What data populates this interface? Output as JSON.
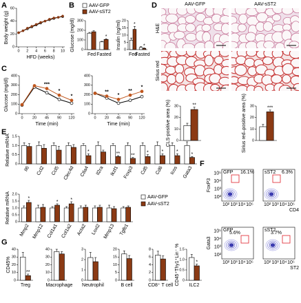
{
  "chart_data": [
    {
      "panel": "A",
      "type": "line",
      "ylabel": "Body weight (g)",
      "xlabel": "HFD (weeks)",
      "x": [
        0,
        1,
        2,
        3,
        4,
        5,
        6,
        7,
        8,
        9,
        10
      ],
      "xlim": [
        0,
        10
      ],
      "xticks": [
        0,
        2,
        4,
        6,
        8,
        10
      ],
      "ylim": [
        0,
        60
      ],
      "yticks": [
        0,
        20,
        40,
        60
      ],
      "series": [
        {
          "color": "#000000",
          "fill": "#ffffff",
          "values": [
            22,
            25,
            28,
            31,
            34,
            37,
            40,
            42,
            44,
            46,
            47
          ]
        },
        {
          "color": "#8b3a14",
          "fill": "#8b3a14",
          "values": [
            22,
            25,
            29,
            32,
            35,
            38,
            40,
            43,
            45,
            46,
            48
          ]
        }
      ]
    },
    {
      "panel": "B",
      "type": "bar",
      "ylabel": "Glucose (mg/dl)",
      "categories": [
        "Fed",
        "Fasted"
      ],
      "ylim": [
        0,
        300
      ],
      "yticks": [
        0,
        100,
        200,
        300
      ],
      "legend": "top",
      "series": [
        {
          "name": "AAV-GFP",
          "color": "#ffffff",
          "values": [
            170,
            80
          ],
          "errors": [
            8,
            6
          ]
        },
        {
          "name": "AAV-sST2",
          "color": "#8b3a14",
          "values": [
            185,
            105
          ],
          "errors": [
            10,
            8
          ]
        }
      ],
      "annotations": [
        {
          "category": "Fasted",
          "text": "*"
        }
      ]
    },
    {
      "type": "bar",
      "ylabel": "Insulin (ng/ml)",
      "categories": [
        "Fed",
        "Fasted"
      ],
      "ylim": [
        0,
        20
      ],
      "yticks": [
        0,
        5,
        10,
        15,
        20
      ],
      "series": [
        {
          "color": "#ffffff",
          "values": [
            6.5,
            1.5
          ],
          "errors": [
            1.5,
            0.5
          ]
        },
        {
          "color": "#8b3a14",
          "values": [
            14,
            0.8
          ],
          "errors": [
            2,
            0.3
          ]
        }
      ],
      "annotations": [
        {
          "category": "Fed",
          "text": "*"
        },
        {
          "category": "Fasted",
          "text": "*"
        }
      ]
    },
    {
      "panel": "C",
      "type": "line",
      "ylabel": "Glucose (mg/dl)",
      "xlabel": "Time (min)",
      "categories": [
        "0",
        "20",
        "45",
        "90",
        "120"
      ],
      "ylim": [
        0,
        400
      ],
      "yticks": [
        0,
        100,
        200,
        300,
        400
      ],
      "series": [
        {
          "color": "#000000",
          "fill": "#ffffff",
          "values": [
            90,
            280,
            220,
            150,
            110
          ]
        },
        {
          "color": "#c0571e",
          "fill": "#c0571e",
          "values": [
            95,
            295,
            265,
            195,
            140
          ]
        }
      ],
      "annotations": [
        {
          "category": "45",
          "text": "***"
        },
        {
          "category": "90",
          "text": "*"
        },
        {
          "category": "120",
          "text": "*"
        }
      ]
    },
    {
      "type": "line",
      "xlabel": "Time (min)",
      "categories": [
        "0",
        "20",
        "45",
        "90",
        "120"
      ],
      "ylim": [
        0,
        400
      ],
      "yticks": [
        0,
        100,
        200,
        300,
        400
      ],
      "series": [
        {
          "color": "#000000",
          "fill": "#ffffff",
          "values": [
            215,
            165,
            110,
            140,
            180
          ]
        },
        {
          "color": "#c0571e",
          "fill": "#c0571e",
          "values": [
            215,
            185,
            150,
            195,
            235
          ]
        }
      ],
      "annotations": [
        {
          "category": "20",
          "text": "**"
        },
        {
          "category": "45",
          "text": "*"
        },
        {
          "category": "90",
          "text": "**"
        },
        {
          "category": "120",
          "text": "*"
        }
      ]
    },
    {
      "type": "bar",
      "ylabel": "CLS-positive area (%)",
      "ylim": [
        0,
        30
      ],
      "yticks": [
        0,
        10,
        20,
        30
      ],
      "series": [
        {
          "color": "#ffffff",
          "values": [
            13
          ],
          "errors": [
            2
          ]
        },
        {
          "color": "#8b3a14",
          "values": [
            27
          ],
          "errors": [
            2
          ]
        }
      ],
      "annotations": [
        {
          "text": "**"
        }
      ]
    },
    {
      "type": "bar",
      "ylabel": "Sirius red–positive area (%)",
      "ylim": [
        0,
        30
      ],
      "yticks": [
        0,
        10,
        20,
        30
      ],
      "series": [
        {
          "color": "#ffffff",
          "values": [
            12
          ],
          "errors": [
            2
          ]
        },
        {
          "color": "#8b3a14",
          "values": [
            25
          ],
          "errors": [
            1.5
          ]
        }
      ],
      "annotations": [
        {
          "text": "***"
        }
      ]
    },
    {
      "panel": "E",
      "type": "bar",
      "ylabel": "Relative mRNA",
      "categories": [
        "Il6",
        "Ccl2",
        "Ccl5",
        "Clec4d",
        "Ctla4",
        "Il2ra",
        "Ikzf1",
        "Foxp3",
        "Cd5",
        "Cd6",
        "Icos",
        "Gata3"
      ],
      "ylim": [
        0,
        1.5
      ],
      "yticks": [
        0,
        0.5,
        {
          "value": 1,
          "label": "1.0"
        },
        1.5
      ],
      "series": [
        {
          "color": "#ffffff",
          "values": [
            1,
            1,
            1,
            1,
            1,
            1,
            1,
            1,
            1,
            1,
            1,
            1
          ],
          "errors": [
            0.15,
            0.2,
            0.15,
            0.15,
            0.1,
            0.2,
            0.1,
            0.15,
            0.15,
            0.2,
            0.15,
            0.2
          ]
        },
        {
          "color": "#8b3a14",
          "values": [
            0.95,
            0.85,
            0.75,
            0.9,
            0.45,
            0.65,
            0.4,
            0.3,
            0.4,
            0.45,
            0.45,
            0.35
          ],
          "errors": [
            0.15,
            0.2,
            0.2,
            0.15,
            0.1,
            0.1,
            0.05,
            0.05,
            0.1,
            0.1,
            0.1,
            0.05
          ]
        }
      ],
      "annotations": [
        {
          "category": "Ctla4",
          "text": "*"
        },
        {
          "category": "Ikzf1",
          "text": "**"
        },
        {
          "category": "Foxp3",
          "text": "**"
        },
        {
          "category": "Cd5",
          "text": "*"
        },
        {
          "category": "Cd6",
          "text": "*"
        },
        {
          "category": "Icos",
          "text": "*"
        },
        {
          "category": "Gata3",
          "text": "*"
        }
      ]
    },
    {
      "type": "bar",
      "ylabel": "Relative mRNA",
      "categories": [
        "Mmp2",
        "Mmp12",
        "Col1a1",
        "Col1a2",
        "Acta2",
        "Loxl2",
        "Mmp13",
        "Tgfb1"
      ],
      "ylim": [
        0,
        2
      ],
      "yticks": [
        0,
        0.5,
        {
          "value": 1,
          "label": "1.0"
        },
        1.5,
        {
          "value": 2,
          "label": "2.0"
        }
      ],
      "legend": "right",
      "series": [
        {
          "name": "AAV-GFP",
          "color": "#ffffff",
          "values": [
            1,
            1,
            1,
            1,
            1,
            1,
            1,
            1
          ],
          "errors": [
            0.15,
            0.2,
            0.1,
            0.1,
            0.15,
            0.15,
            0.2,
            0.1
          ]
        },
        {
          "name": "AAV-sST2",
          "color": "#8b3a14",
          "values": [
            1.4,
            1.05,
            1.2,
            1.3,
            1.05,
            1.05,
            0.95,
            1.05
          ],
          "errors": [
            0.15,
            0.2,
            0.1,
            0.15,
            0.15,
            0.15,
            0.15,
            0.1
          ]
        }
      ],
      "annotations": [
        {
          "category": "Mmp2",
          "text": "*"
        },
        {
          "category": "Col1a1",
          "text": "*"
        },
        {
          "category": "Col1a2",
          "text": "*"
        }
      ]
    },
    {
      "panel": "G",
      "type": "bar",
      "ylabel": "CD45%",
      "categories": [
        "Treg"
      ],
      "ylim": [
        0,
        40
      ],
      "yticks": [
        0,
        10,
        20,
        30,
        40
      ],
      "series": [
        {
          "color": "#ffffff",
          "values": [
            30
          ],
          "errors": [
            6
          ]
        },
        {
          "color": "#8b3a14",
          "values": [
            6
          ],
          "errors": [
            2
          ]
        }
      ],
      "annotations": [
        {
          "category": "Treg",
          "text": "**"
        }
      ]
    },
    {
      "type": "bar",
      "categories": [
        "Macrophage"
      ],
      "ylim": [
        0,
        40
      ],
      "yticks": [
        0,
        10,
        20,
        30,
        40
      ],
      "series": [
        {
          "color": "#ffffff",
          "values": [
            37
          ],
          "errors": [
            3
          ]
        },
        {
          "color": "#8b3a14",
          "values": [
            34
          ],
          "errors": [
            3
          ]
        }
      ]
    },
    {
      "type": "bar",
      "categories": [
        "Neutrophil"
      ],
      "ylim": [
        0,
        3
      ],
      "yticks": [
        0,
        1,
        2,
        3
      ],
      "series": [
        {
          "color": "#ffffff",
          "values": [
            2.2
          ],
          "errors": [
            0.5
          ]
        },
        {
          "color": "#8b3a14",
          "values": [
            1.8
          ],
          "errors": [
            0.4
          ]
        }
      ]
    },
    {
      "type": "bar",
      "categories": [
        "B cell"
      ],
      "ylim": [
        0,
        20
      ],
      "yticks": [
        0,
        5,
        10,
        15,
        20
      ],
      "series": [
        {
          "color": "#ffffff",
          "values": [
            17
          ],
          "errors": [
            2
          ]
        },
        {
          "color": "#8b3a14",
          "values": [
            14
          ],
          "errors": [
            2
          ]
        }
      ]
    },
    {
      "type": "bar",
      "categories": [
        "CD8⁺ T cell"
      ],
      "ylim": [
        0,
        8
      ],
      "yticks": [
        0,
        2,
        4,
        6,
        8
      ],
      "series": [
        {
          "color": "#ffffff",
          "values": [
            6.5
          ],
          "errors": [
            1
          ]
        },
        {
          "color": "#8b3a14",
          "values": [
            5.5
          ],
          "errors": [
            0.8
          ]
        }
      ]
    },
    {
      "type": "bar",
      "ylabel": "CD45⁺Thy1⁺Lin⁻ %",
      "categories": [
        "ILC2"
      ],
      "ylim": [
        0,
        1.5
      ],
      "yticks": [
        0,
        0.5,
        {
          "value": 1,
          "label": "1.0"
        },
        1.5
      ],
      "series": [
        {
          "color": "#ffffff",
          "values": [
            1.1
          ],
          "errors": [
            0.15
          ]
        },
        {
          "color": "#8b3a14",
          "values": [
            0.7
          ],
          "errors": [
            0.08
          ]
        }
      ],
      "annotations": [
        {
          "category": "ILC2",
          "text": "*"
        }
      ]
    }
  ],
  "micrographs": {
    "panel": "D",
    "columns": [
      "AAV-GFP",
      "AAV-sST2"
    ],
    "rows": [
      "H&E",
      "Sirius red"
    ]
  },
  "flow_plots": {
    "panel": "F",
    "ticks": [
      "10²",
      "10³",
      "10⁴",
      "10⁵"
    ],
    "rows": [
      {
        "ylabel": "FoxP3",
        "xlabel": "CD4",
        "plots": [
          {
            "title": "GFP",
            "gate": "16.1%"
          },
          {
            "title": "sST2",
            "gate": "6.3%"
          }
        ]
      },
      {
        "ylabel": "Gata3",
        "xlabel": "ST2",
        "plots": [
          {
            "title": "GFP",
            "gate": "5.6%"
          },
          {
            "title": "sST2",
            "gate": "3.7%"
          }
        ]
      }
    ]
  }
}
